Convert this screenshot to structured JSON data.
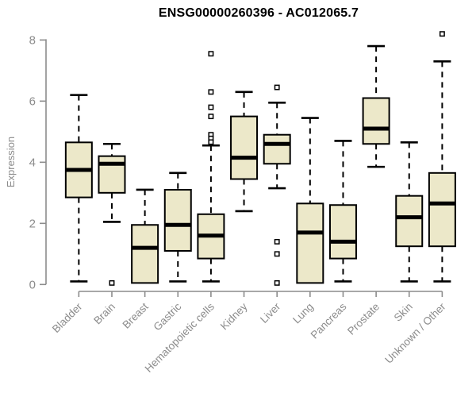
{
  "colors": {
    "box_fill": "#ece8c9",
    "box_stroke": "#000000",
    "median_color": "#000000",
    "whisker_color": "#000000",
    "outlier_fill": "#ffffff",
    "axis_color": "#8c8c8c",
    "title_color": "#000000",
    "background": "#ffffff"
  },
  "chart_data": {
    "type": "boxplot",
    "title": "ENSG00000260396 - AC012065.7",
    "xlabel": "",
    "ylabel": "Expression",
    "ylim": [
      0,
      8
    ],
    "yticks": [
      0,
      2,
      4,
      6,
      8
    ],
    "grid": false,
    "legend": "none",
    "categories": [
      "Bladder",
      "Brain",
      "Breast",
      "Gastric",
      "Hematopoietic cells",
      "Kidney",
      "Liver",
      "Lung",
      "Pancreas",
      "Prostate",
      "Skin",
      "Unknown / Other"
    ],
    "series": [
      {
        "name": "Bladder",
        "whisker_low": 0.1,
        "q1": 2.85,
        "median": 3.75,
        "q3": 4.65,
        "whisker_high": 6.2,
        "outliers": []
      },
      {
        "name": "Brain",
        "whisker_low": 2.05,
        "q1": 3.0,
        "median": 3.95,
        "q3": 4.2,
        "whisker_high": 4.6,
        "outliers": [
          0.05
        ]
      },
      {
        "name": "Breast",
        "whisker_low": 0.05,
        "q1": 0.05,
        "median": 1.2,
        "q3": 1.95,
        "whisker_high": 3.1,
        "outliers": []
      },
      {
        "name": "Gastric",
        "whisker_low": 0.1,
        "q1": 1.1,
        "median": 1.95,
        "q3": 3.1,
        "whisker_high": 3.65,
        "outliers": []
      },
      {
        "name": "Hematopoietic cells",
        "whisker_low": 0.1,
        "q1": 0.85,
        "median": 1.6,
        "q3": 2.3,
        "whisker_high": 4.55,
        "outliers": [
          7.55,
          6.3,
          5.8,
          5.5,
          4.9,
          4.78,
          4.66
        ]
      },
      {
        "name": "Kidney",
        "whisker_low": 2.4,
        "q1": 3.45,
        "median": 4.15,
        "q3": 5.5,
        "whisker_high": 6.3,
        "outliers": []
      },
      {
        "name": "Liver",
        "whisker_low": 3.15,
        "q1": 3.95,
        "median": 4.6,
        "q3": 4.9,
        "whisker_high": 5.95,
        "outliers": [
          6.45,
          1.4,
          1.0,
          0.05
        ]
      },
      {
        "name": "Lung",
        "whisker_low": 0.05,
        "q1": 0.05,
        "median": 1.7,
        "q3": 2.65,
        "whisker_high": 5.45,
        "outliers": []
      },
      {
        "name": "Pancreas",
        "whisker_low": 0.1,
        "q1": 0.85,
        "median": 1.4,
        "q3": 2.6,
        "whisker_high": 4.7,
        "outliers": []
      },
      {
        "name": "Prostate",
        "whisker_low": 3.85,
        "q1": 4.6,
        "median": 5.1,
        "q3": 6.1,
        "whisker_high": 7.8,
        "outliers": []
      },
      {
        "name": "Skin",
        "whisker_low": 0.1,
        "q1": 1.25,
        "median": 2.2,
        "q3": 2.9,
        "whisker_high": 4.65,
        "outliers": []
      },
      {
        "name": "Unknown / Other",
        "whisker_low": 0.1,
        "q1": 1.25,
        "median": 2.65,
        "q3": 3.65,
        "whisker_high": 7.3,
        "outliers": [
          8.2
        ]
      }
    ]
  }
}
